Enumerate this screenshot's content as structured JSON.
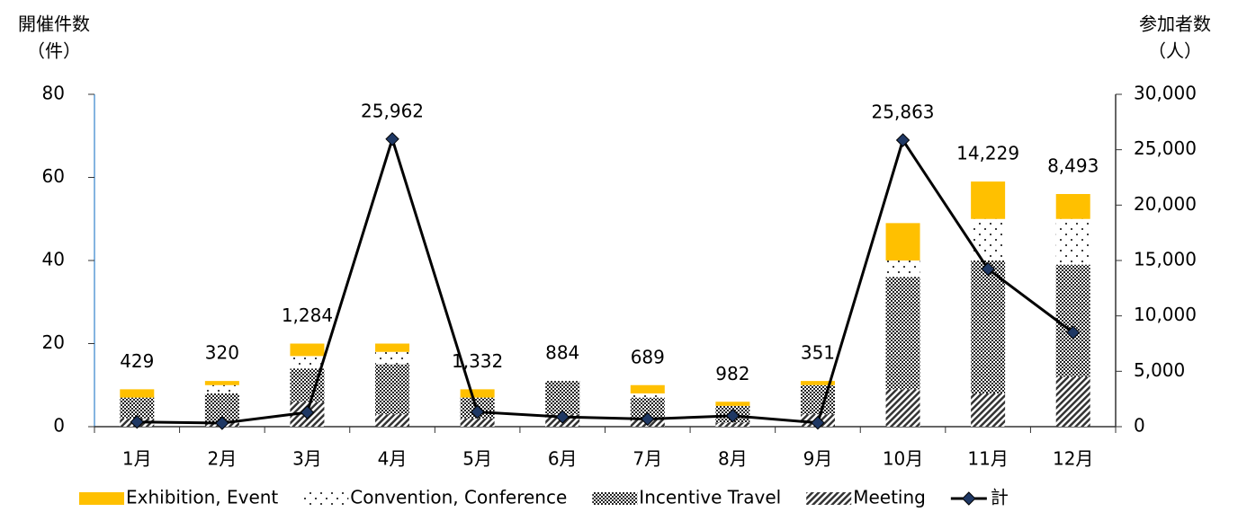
{
  "chart_data": {
    "type": "combo",
    "y_label": [
      "開催件数",
      "（件）"
    ],
    "y2_label": [
      "参加者数",
      "（人）"
    ],
    "categories": [
      "1月",
      "2月",
      "3月",
      "4月",
      "5月",
      "6月",
      "7月",
      "8月",
      "9月",
      "10月",
      "11月",
      "12月"
    ],
    "ylim": [
      0,
      80
    ],
    "yticks": [
      0,
      20,
      40,
      60,
      80
    ],
    "y2lim": [
      0,
      30000
    ],
    "y2ticks": [
      0,
      {
        "value": 5000,
        "label": "5,000"
      },
      {
        "value": 10000,
        "label": "10,000"
      },
      {
        "value": 15000,
        "label": "15,000"
      },
      {
        "value": 20000,
        "label": "20,000"
      },
      {
        "value": 25000,
        "label": "25,000"
      },
      {
        "value": 30000,
        "label": "30,000"
      }
    ],
    "legend": "bottom",
    "series": [
      {
        "name": "Exhibition, Event",
        "type": "bar",
        "color": "#ffc000",
        "pattern": "solid",
        "values": [
          2,
          1,
          3,
          2,
          2,
          0,
          2,
          1,
          1,
          9,
          9,
          6
        ]
      },
      {
        "name": "Convention, Conference",
        "type": "bar",
        "color": "#000000",
        "pattern": "dots",
        "values": [
          0,
          2,
          3,
          3,
          0,
          0,
          1,
          0,
          0,
          4,
          10,
          11
        ]
      },
      {
        "name": "Incentive Travel",
        "type": "bar",
        "color": "#333333",
        "pattern": "checker",
        "values": [
          5,
          7,
          8,
          12,
          5,
          8,
          5,
          4,
          7,
          27,
          32,
          27
        ]
      },
      {
        "name": "Meeting",
        "type": "bar",
        "color": "#444444",
        "pattern": "diagonal",
        "values": [
          2,
          1,
          6,
          3,
          2,
          3,
          2,
          1,
          3,
          9,
          8,
          12
        ]
      },
      {
        "name": "計",
        "type": "line",
        "axis": "y2",
        "color": "#000000",
        "marker_color": "#1f3864",
        "values": [
          429,
          320,
          1284,
          25962,
          1332,
          884,
          689,
          982,
          351,
          25863,
          14229,
          8493
        ],
        "value_labels": [
          "429",
          "320",
          "1,284",
          "25,962",
          "1,332",
          "884",
          "689",
          "982",
          "351",
          "25,863",
          "14,229",
          "8,493"
        ]
      }
    ]
  }
}
